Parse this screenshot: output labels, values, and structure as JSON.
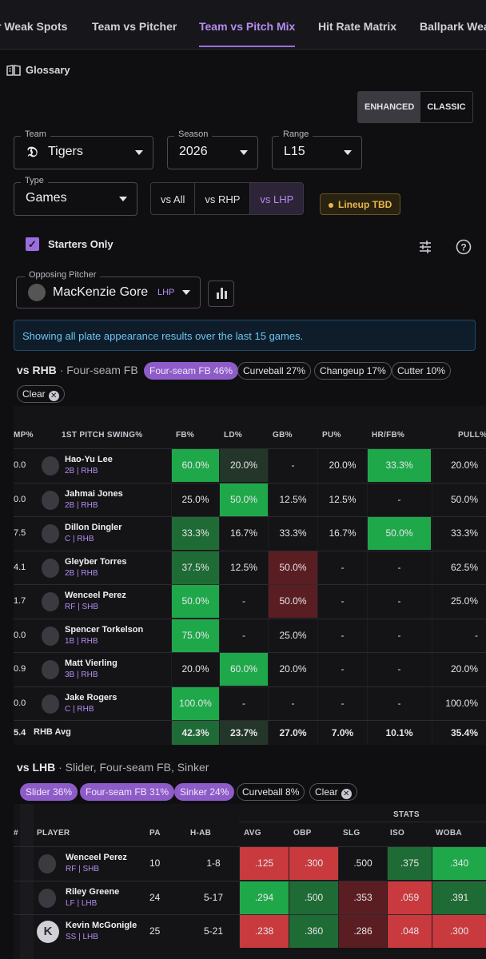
{
  "tabs": [
    "r Weak Spots",
    "Team vs Pitcher",
    "Team vs Pitch Mix",
    "Hit Rate Matrix",
    "Ballpark Weat"
  ],
  "active_tab": "Team vs Pitch Mix",
  "glossary": "Glossary",
  "view_toggle": {
    "enhanced": "ENHANCED",
    "classic": "CLASSIC",
    "selected": "ENHANCED"
  },
  "filters": {
    "team": {
      "label": "Team",
      "value": "Tigers"
    },
    "season": {
      "label": "Season",
      "value": "2026"
    },
    "range": {
      "label": "Range",
      "value": "L15"
    },
    "type": {
      "label": "Type",
      "value": "Games"
    }
  },
  "split_buttons": [
    "vs All",
    "vs RHP",
    "vs LHP"
  ],
  "split_selected": "vs LHP",
  "lineup_badge": "Lineup TBD",
  "starters_only": {
    "label": "Starters Only",
    "checked": true
  },
  "opposing_pitcher": {
    "label": "Opposing Pitcher",
    "name": "MacKenzie Gore",
    "hand": "LHP"
  },
  "info_banner": "Showing all plate appearance results over the last 15 games.",
  "rhb_section": {
    "title": "vs RHB",
    "subtitle": "· Four-seam FB",
    "chips": [
      {
        "label": "Four-seam FB 46%",
        "selected": true
      },
      {
        "label": "Curveball 27%",
        "selected": false
      },
      {
        "label": "Changeup 17%",
        "selected": false
      },
      {
        "label": "Cutter 10%",
        "selected": false
      }
    ],
    "clear": "Clear",
    "headers": [
      "MP%",
      "1ST PITCH SWING%",
      "FB%",
      "LD%",
      "GB%",
      "PU%",
      "HR/FB%",
      "PULL%"
    ],
    "rows": [
      {
        "clip": "0.0",
        "name": "Hao-Yu Lee",
        "pos": "2B | RHB",
        "vals": [
          "60.0%",
          "20.0%",
          "-",
          "20.0%",
          "33.3%",
          "20.0%"
        ],
        "colors": [
          "g1",
          "d1",
          "",
          "",
          "g1",
          ""
        ]
      },
      {
        "clip": "0.0",
        "name": "Jahmai Jones",
        "pos": "2B | RHB",
        "vals": [
          "25.0%",
          "50.0%",
          "12.5%",
          "12.5%",
          "-",
          "50.0%"
        ],
        "colors": [
          "",
          "g1",
          "",
          "",
          "",
          ""
        ]
      },
      {
        "clip": "7.5",
        "name": "Dillon Dingler",
        "pos": "C | RHB",
        "vals": [
          "33.3%",
          "16.7%",
          "33.3%",
          "16.7%",
          "50.0%",
          "33.3%"
        ],
        "colors": [
          "g2",
          "",
          "",
          "",
          "g1",
          ""
        ]
      },
      {
        "clip": "4.1",
        "name": "Gleyber Torres",
        "pos": "2B | RHB",
        "vals": [
          "37.5%",
          "12.5%",
          "50.0%",
          "-",
          "-",
          "62.5%"
        ],
        "colors": [
          "g2",
          "",
          "r1",
          "",
          "",
          ""
        ]
      },
      {
        "clip": "1.7",
        "name": "Wenceel Perez",
        "pos": "RF | SHB",
        "vals": [
          "50.0%",
          "-",
          "50.0%",
          "-",
          "-",
          "25.0%"
        ],
        "colors": [
          "g1",
          "",
          "r1",
          "",
          "",
          ""
        ]
      },
      {
        "clip": "0.0",
        "name": "Spencer Torkelson",
        "pos": "1B | RHB",
        "vals": [
          "75.0%",
          "-",
          "25.0%",
          "-",
          "-",
          "-"
        ],
        "colors": [
          "g1",
          "",
          "",
          "",
          "",
          ""
        ]
      },
      {
        "clip": "0.9",
        "name": "Matt Vierling",
        "pos": "3B | RHB",
        "vals": [
          "20.0%",
          "60.0%",
          "20.0%",
          "-",
          "-",
          "20.0%"
        ],
        "colors": [
          "",
          "g1",
          "",
          "",
          "",
          ""
        ]
      },
      {
        "clip": "0.0",
        "name": "Jake Rogers",
        "pos": "C | RHB",
        "vals": [
          "100.0%",
          "-",
          "-",
          "-",
          "-",
          "100.0%"
        ],
        "colors": [
          "g1",
          "",
          "",
          "",
          "",
          ""
        ]
      }
    ],
    "avg": {
      "clip": "5.4",
      "label": "RHB Avg",
      "vals": [
        "42.3%",
        "23.7%",
        "27.0%",
        "7.0%",
        "10.1%",
        "35.4%"
      ]
    }
  },
  "lhb_section": {
    "title": "vs LHB",
    "subtitle": "· Slider, Four-seam FB, Sinker",
    "chips": [
      {
        "label": "Slider 36%",
        "selected": true
      },
      {
        "label": "Four-seam FB 31%",
        "selected": true
      },
      {
        "label": "Sinker 24%",
        "selected": true
      },
      {
        "label": "Curveball 8%",
        "selected": false
      }
    ],
    "clear": "Clear",
    "group_header": "STATS",
    "headers": [
      "#",
      "PLAYER",
      "PA",
      "H-AB",
      "AVG",
      "OBP",
      "SLG",
      "ISO",
      "WOBA"
    ],
    "rows": [
      {
        "name": "Wenceel Perez",
        "pos": "RF | SHB",
        "pa": "10",
        "hab": "1-8",
        "vals": [
          ".125",
          ".300",
          ".500",
          ".375",
          ".340"
        ],
        "colors": [
          "r2",
          "r2",
          "",
          "g2",
          "g1"
        ]
      },
      {
        "name": "Riley Greene",
        "pos": "LF | LHB",
        "pa": "24",
        "hab": "5-17",
        "vals": [
          ".294",
          ".500",
          ".353",
          ".059",
          ".391"
        ],
        "colors": [
          "g1",
          "g2",
          "r1",
          "r2",
          "g2"
        ]
      },
      {
        "name": "Kevin McGonigle",
        "pos": "SS | LHB",
        "initial": "K",
        "pa": "25",
        "hab": "5-21",
        "vals": [
          ".238",
          ".360",
          ".286",
          ".048",
          ".300"
        ],
        "colors": [
          "r2",
          "g2",
          "r1",
          "r2",
          "r2"
        ]
      }
    ]
  },
  "colors": {
    "g1": "#1fa84a",
    "g2": "#1f6b35",
    "d1": "#24362a",
    "r1": "#5a1e22",
    "r2": "#c83a3e",
    "accent": "#9a6ee0"
  }
}
